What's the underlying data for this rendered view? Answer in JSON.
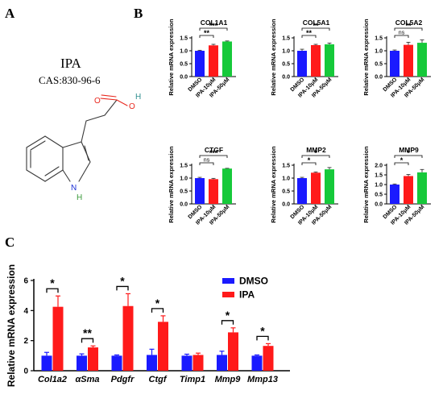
{
  "panel_labels": {
    "a": "A",
    "b": "B",
    "c": "C"
  },
  "compound": {
    "name": "IPA",
    "cas": "CAS:830-96-6",
    "atoms": {
      "o_carbonyl": "O",
      "o_hydroxyl": "O",
      "h_hydroxyl": "H",
      "n_ring": "N",
      "h_ring": "H"
    },
    "colors": {
      "oxygen": "#e8261c",
      "hydroxyl_h": "#2f8f8f",
      "nitrogen": "#1b2fd6",
      "ring_h": "#3a9a3a",
      "bond": "#3a3a3a"
    }
  },
  "colors": {
    "dmso": "#1a1aff",
    "ipa10": "#ff1a1a",
    "ipa50": "#16c93a",
    "ipa": "#ff1a1a",
    "error": "#222222",
    "axis": "#000000"
  },
  "chart_data": [
    {
      "type": "bar",
      "title": "COL1A1",
      "ylabel": "Relative mRNA expression",
      "ylim": [
        0.0,
        1.5
      ],
      "yticks": [
        "0.0",
        "0.5",
        "1.0",
        "1.5"
      ],
      "categories": [
        "DMSO",
        "IPA-10μM",
        "IPA-50μM"
      ],
      "values": [
        1.0,
        1.21,
        1.36
      ],
      "errors": [
        0.02,
        0.04,
        0.02
      ],
      "significance": [
        {
          "from": 0,
          "to": 1,
          "label": "**"
        },
        {
          "from": 0,
          "to": 2,
          "label": "***"
        }
      ]
    },
    {
      "type": "bar",
      "title": "COL5A1",
      "ylabel": "Relative mRNA expression",
      "ylim": [
        0.0,
        1.5
      ],
      "yticks": [
        "0.0",
        "0.5",
        "1.0",
        "1.5"
      ],
      "categories": [
        "DMSO",
        "IPA-10μM",
        "IPA-50μM"
      ],
      "values": [
        1.0,
        1.22,
        1.25
      ],
      "errors": [
        0.06,
        0.03,
        0.05
      ],
      "significance": [
        {
          "from": 0,
          "to": 1,
          "label": "**"
        },
        {
          "from": 0,
          "to": 2,
          "label": "**"
        }
      ]
    },
    {
      "type": "bar",
      "title": "COL5A2",
      "ylabel": "Relative mRNA expression",
      "ylim": [
        0.0,
        1.5
      ],
      "yticks": [
        "0.0",
        "0.5",
        "1.0",
        "1.5"
      ],
      "categories": [
        "DMSO",
        "IPA-10μM",
        "IPA-50μM"
      ],
      "values": [
        1.0,
        1.23,
        1.31
      ],
      "errors": [
        0.03,
        0.1,
        0.11
      ],
      "significance": [
        {
          "from": 0,
          "to": 1,
          "label": "ns"
        },
        {
          "from": 0,
          "to": 2,
          "label": "**"
        }
      ]
    },
    {
      "type": "bar",
      "title": "CTGF",
      "ylabel": "Relative mRNA expression",
      "ylim": [
        0.0,
        1.5
      ],
      "yticks": [
        "0.0",
        "0.5",
        "1.0",
        "1.5"
      ],
      "categories": [
        "DMSO",
        "IPA-10μM",
        "IPA-50μM"
      ],
      "values": [
        1.0,
        0.96,
        1.37
      ],
      "errors": [
        0.03,
        0.03,
        0.01
      ],
      "significance": [
        {
          "from": 0,
          "to": 1,
          "label": "ns"
        },
        {
          "from": 0,
          "to": 2,
          "label": "***"
        }
      ]
    },
    {
      "type": "bar",
      "title": "MMP2",
      "ylabel": "Relative mRNA expression",
      "ylim": [
        0.0,
        1.5
      ],
      "yticks": [
        "0.0",
        "0.5",
        "1.0",
        "1.5"
      ],
      "categories": [
        "DMSO",
        "IPA-10μM",
        "IPA-50μM"
      ],
      "values": [
        1.0,
        1.21,
        1.34
      ],
      "errors": [
        0.03,
        0.03,
        0.07
      ],
      "significance": [
        {
          "from": 0,
          "to": 1,
          "label": "*"
        },
        {
          "from": 0,
          "to": 2,
          "label": "*"
        }
      ]
    },
    {
      "type": "bar",
      "title": "MMP9",
      "ylabel": "Relative mRNA expression",
      "ylim": [
        0.0,
        2.0
      ],
      "yticks": [
        "0.0",
        "0.5",
        "1.0",
        "1.5",
        "2.0"
      ],
      "categories": [
        "DMSO",
        "IPA-10μM",
        "IPA-50μM"
      ],
      "values": [
        1.0,
        1.44,
        1.63
      ],
      "errors": [
        0.03,
        0.08,
        0.15
      ],
      "significance": [
        {
          "from": 0,
          "to": 1,
          "label": "*"
        },
        {
          "from": 0,
          "to": 2,
          "label": "*"
        }
      ]
    },
    {
      "type": "bar",
      "ylabel": "Relative mRNA expression",
      "ylim": [
        0,
        6
      ],
      "yticks": [
        "0",
        "2",
        "4",
        "6"
      ],
      "categories": [
        "Col1a2",
        "αSma",
        "Pdgfr",
        "Ctgf",
        "Timp1",
        "Mmp9",
        "Mmp13"
      ],
      "series": [
        {
          "name": "DMSO",
          "values": [
            1.0,
            1.0,
            1.0,
            1.05,
            1.0,
            1.05,
            1.0
          ],
          "errors": [
            0.22,
            0.12,
            0.05,
            0.38,
            0.1,
            0.25,
            0.05
          ]
        },
        {
          "name": "IPA",
          "values": [
            4.25,
            1.55,
            4.3,
            3.25,
            1.05,
            2.55,
            1.65
          ],
          "errors": [
            0.72,
            0.1,
            0.82,
            0.4,
            0.12,
            0.3,
            0.15
          ]
        }
      ],
      "significance": [
        "*",
        "**",
        "*",
        "*",
        "",
        "*",
        "*"
      ],
      "legend": "top-right"
    }
  ]
}
